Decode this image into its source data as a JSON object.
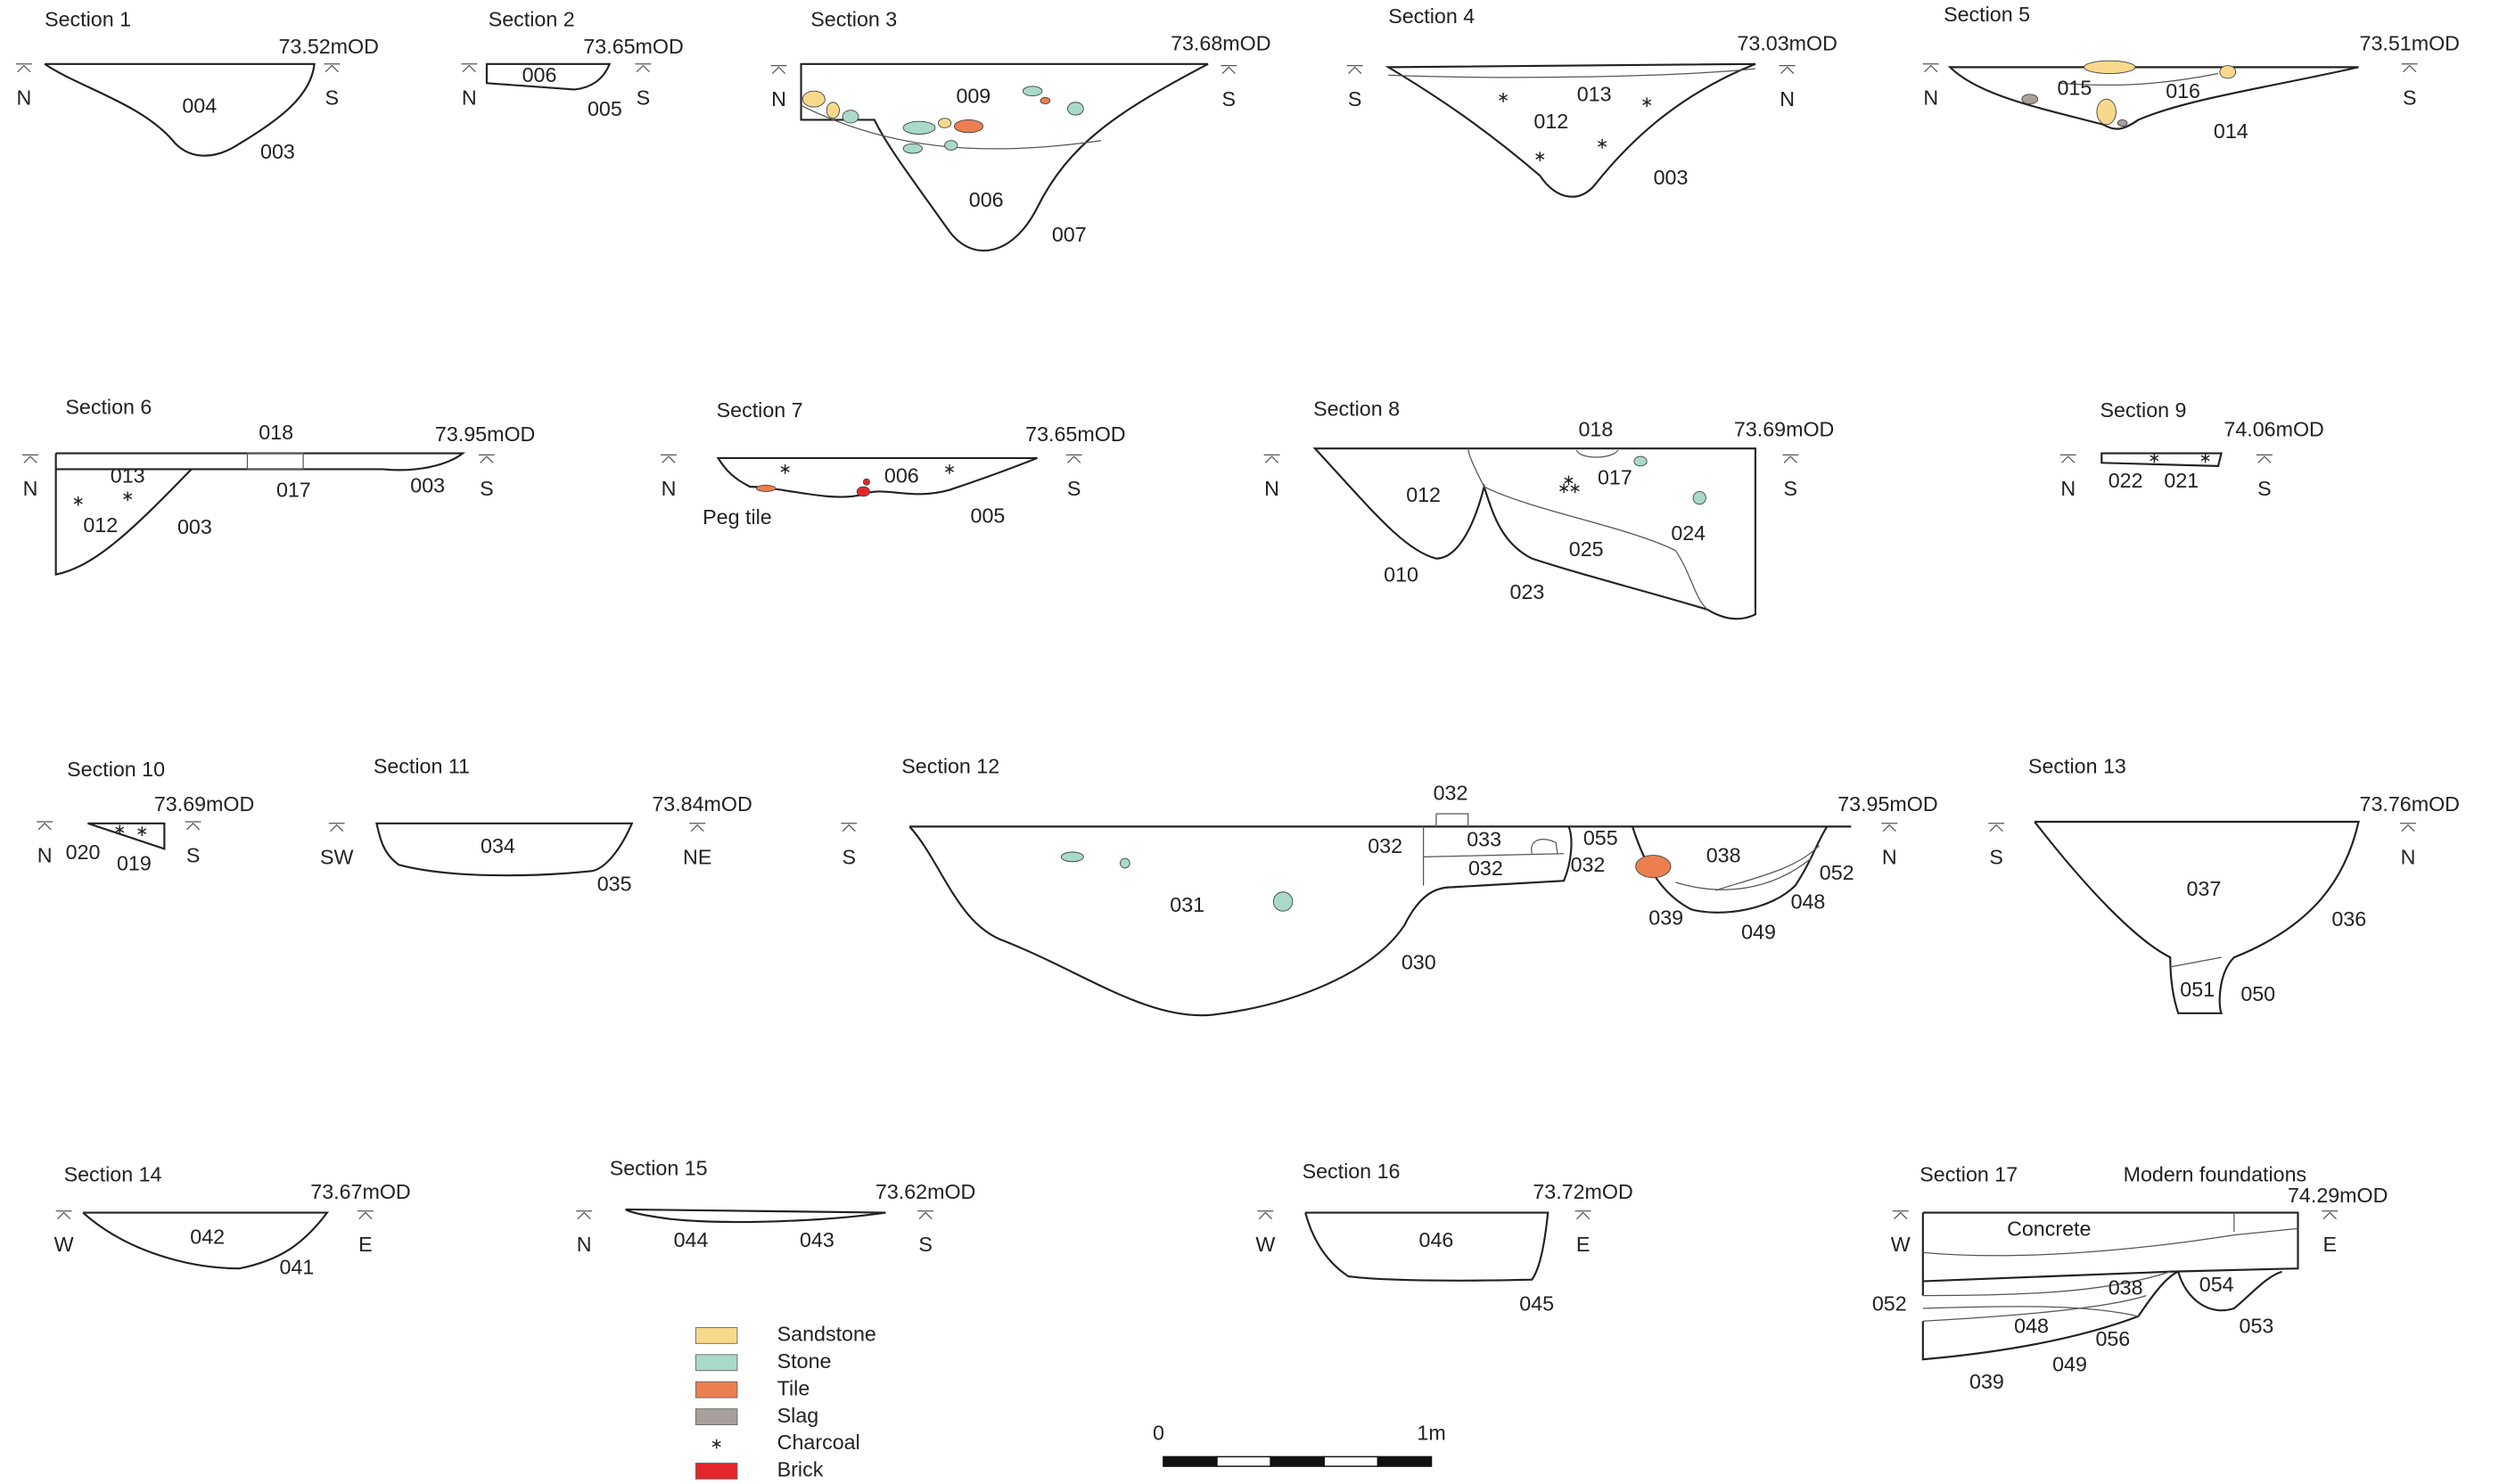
{
  "sections": [
    {
      "title": "Section 1",
      "datum": "73.52mOD",
      "left": "N",
      "right": "S",
      "labels": [
        "004",
        "003"
      ]
    },
    {
      "title": "Section 2",
      "datum": "73.65mOD",
      "left": "N",
      "right": "S",
      "labels": [
        "006",
        "005"
      ]
    },
    {
      "title": "Section 3",
      "datum": "73.68mOD",
      "left": "N",
      "right": "S",
      "labels": [
        "009",
        "006",
        "007"
      ]
    },
    {
      "title": "Section 4",
      "datum": "73.03mOD",
      "left": "S",
      "right": "N",
      "labels": [
        "013",
        "012",
        "003"
      ]
    },
    {
      "title": "Section 5",
      "datum": "73.51mOD",
      "left": "N",
      "right": "S",
      "labels": [
        "015",
        "016",
        "014"
      ]
    },
    {
      "title": "Section 6",
      "datum": "73.95mOD",
      "left": "N",
      "right": "S",
      "labels": [
        "018",
        "013",
        "017",
        "003",
        "012",
        "003"
      ]
    },
    {
      "title": "Section 7",
      "datum": "73.65mOD",
      "left": "N",
      "right": "S",
      "labels": [
        "006",
        "005",
        "Peg tile"
      ]
    },
    {
      "title": "Section 8",
      "datum": "73.69mOD",
      "left": "N",
      "right": "S",
      "labels": [
        "018",
        "017",
        "012",
        "024",
        "025",
        "010",
        "023"
      ]
    },
    {
      "title": "Section 9",
      "datum": "74.06mOD",
      "left": "N",
      "right": "S",
      "labels": [
        "022",
        "021"
      ]
    },
    {
      "title": "Section 10",
      "datum": "73.69mOD",
      "left": "N",
      "right": "S",
      "labels": [
        "020",
        "019"
      ]
    },
    {
      "title": "Section 11",
      "datum": "73.84mOD",
      "left": "SW",
      "right": "NE",
      "labels": [
        "034",
        "035"
      ]
    },
    {
      "title": "Section 12",
      "datum": "73.95mOD",
      "left": "S",
      "right": "N",
      "labels": [
        "032",
        "032",
        "033",
        "055",
        "032",
        "032",
        "038",
        "052",
        "048",
        "039",
        "049",
        "031",
        "030"
      ]
    },
    {
      "title": "Section 13",
      "datum": "73.76mOD",
      "left": "S",
      "right": "N",
      "labels": [
        "037",
        "036",
        "051",
        "050"
      ]
    },
    {
      "title": "Section 14",
      "datum": "73.67mOD",
      "left": "W",
      "right": "E",
      "labels": [
        "042",
        "041"
      ]
    },
    {
      "title": "Section 15",
      "datum": "73.62mOD",
      "left": "N",
      "right": "S",
      "labels": [
        "044",
        "043"
      ]
    },
    {
      "title": "Section 16",
      "datum": "73.72mOD",
      "left": "W",
      "right": "E",
      "labels": [
        "046",
        "045"
      ]
    },
    {
      "title": "Section 17",
      "datum": "74.29mOD",
      "left": "W",
      "right": "E",
      "labels": [
        "Modern foundations",
        "Concrete",
        "038",
        "054",
        "052",
        "048",
        "056",
        "053",
        "049",
        "039"
      ]
    }
  ],
  "legend": [
    {
      "label": "Sandstone",
      "color": "#f8d98c"
    },
    {
      "label": "Stone",
      "color": "#a9d9c9"
    },
    {
      "label": "Tile",
      "color": "#ec7f4f"
    },
    {
      "label": "Slag",
      "color": "#a8a09c"
    },
    {
      "label": "Charcoal"
    },
    {
      "label": "Brick",
      "color": "#e3262b"
    }
  ],
  "scale": {
    "start": "0",
    "end": "1m"
  }
}
